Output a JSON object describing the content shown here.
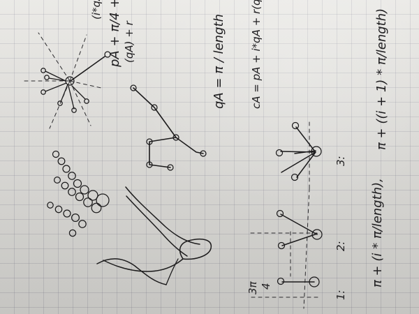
{
  "notebook": {
    "texts": {
      "top_line_1": "pA + π/4 +",
      "top_line_2": "(qA) + r",
      "top_line_3": "(i*qA)",
      "qa_formula": "qA = π / length",
      "ca_formula": "cA = pA + i*qA + r(qA)",
      "bottom_formula_left": "π + (i * π/length),",
      "bottom_formula_right": "π + ((i + 1) * π/length)",
      "fraction_top": "3π",
      "fraction_bottom": "4",
      "label_1": "1:",
      "label_2": "2:",
      "label_3": "3:"
    }
  }
}
